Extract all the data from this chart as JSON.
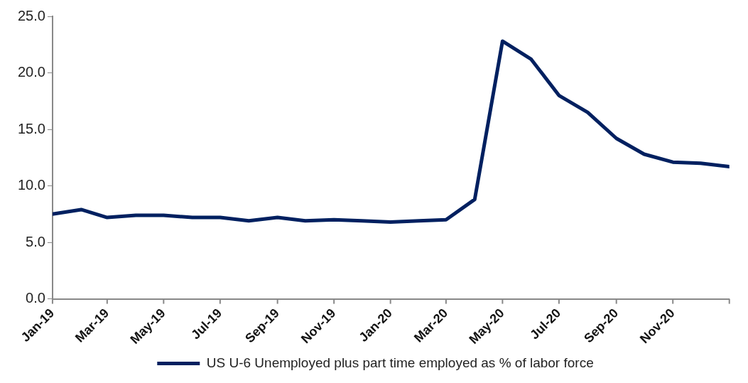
{
  "chart_data": {
    "type": "line",
    "x": [
      "2019-01",
      "2019-02",
      "2019-03",
      "2019-04",
      "2019-05",
      "2019-06",
      "2019-07",
      "2019-08",
      "2019-09",
      "2019-10",
      "2019-11",
      "2019-12",
      "2020-01",
      "2020-02",
      "2020-03",
      "2020-04",
      "2020-05",
      "2020-06",
      "2020-07",
      "2020-08",
      "2020-09",
      "2020-10",
      "2020-11",
      "2020-12",
      "2021-01"
    ],
    "series": [
      {
        "name": "US U-6 Unemployed plus part time employed as % of labor force",
        "color": "#002060",
        "values": [
          7.5,
          7.9,
          7.2,
          7.4,
          7.4,
          7.2,
          7.2,
          6.9,
          7.2,
          6.9,
          7.0,
          6.9,
          6.8,
          6.9,
          7.0,
          8.8,
          22.8,
          21.2,
          18.0,
          16.5,
          14.2,
          12.8,
          12.1,
          12.0,
          11.7
        ]
      }
    ],
    "xlim": [
      "2019-01",
      "2021-01"
    ],
    "xticks": [
      {
        "value": "2019-01",
        "label": "Jan-19"
      },
      {
        "value": "2019-03",
        "label": "Mar-19"
      },
      {
        "value": "2019-05",
        "label": "May-19"
      },
      {
        "value": "2019-07",
        "label": "Jul-19"
      },
      {
        "value": "2019-09",
        "label": "Sep-19"
      },
      {
        "value": "2019-11",
        "label": "Nov-19"
      },
      {
        "value": "2020-01",
        "label": "Jan-20"
      },
      {
        "value": "2020-03",
        "label": "Mar-20"
      },
      {
        "value": "2020-05",
        "label": "May-20"
      },
      {
        "value": "2020-07",
        "label": "Jul-20"
      },
      {
        "value": "2020-09",
        "label": "Sep-20"
      },
      {
        "value": "2020-11",
        "label": "Nov-20"
      },
      {
        "value": "2021-01",
        "label": null
      }
    ],
    "ylim": [
      0,
      25
    ],
    "yticks": [
      {
        "value": 0,
        "label": "0.0"
      },
      {
        "value": 5,
        "label": "5.0"
      },
      {
        "value": 10,
        "label": "10.0"
      },
      {
        "value": 15,
        "label": "15.0"
      },
      {
        "value": 20,
        "label": "20.0"
      },
      {
        "value": 25,
        "label": "25.0"
      }
    ],
    "legend": "bottom",
    "marker": "none",
    "line_style": "solid"
  }
}
